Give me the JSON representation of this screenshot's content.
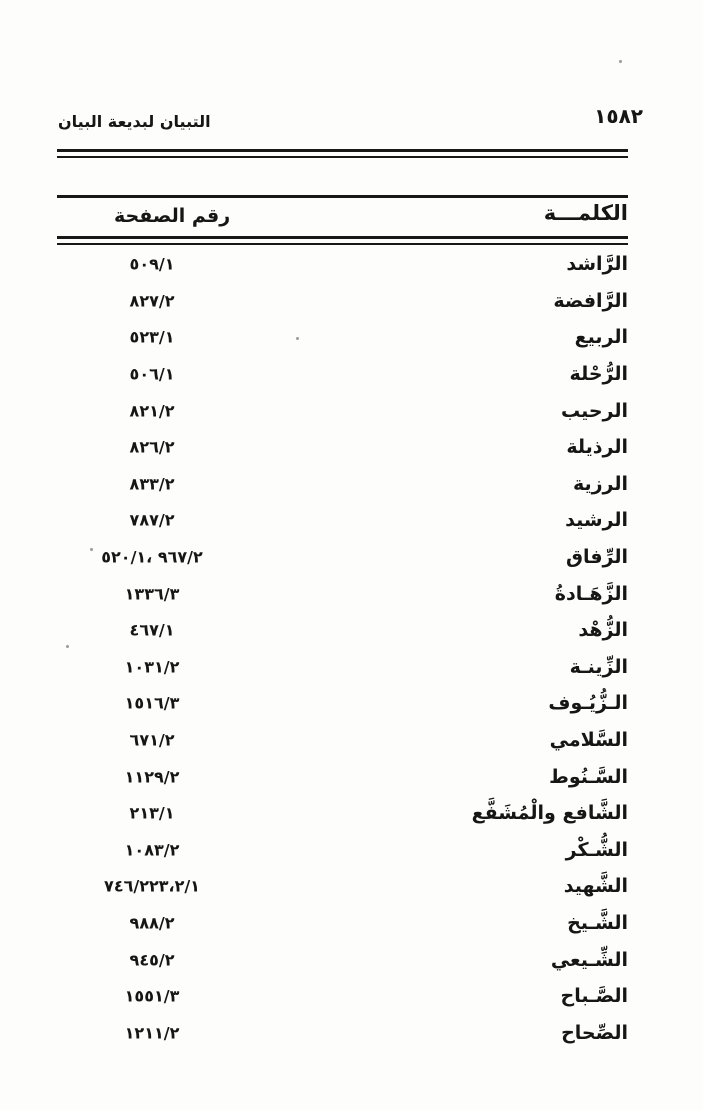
{
  "page": {
    "running_head": {
      "page_number": "١٥٨٢",
      "book_title": "التبيان لبديعة البيان"
    },
    "index_table": {
      "word_header": "الكلمـــة",
      "page_header": "رقم الصفحة",
      "rows": [
        {
          "word": "الرَّاشد",
          "pages": "٥٠٩/١"
        },
        {
          "word": "الرَّافضة",
          "pages": "٨٢٧/٢"
        },
        {
          "word": "الربيع",
          "pages": "٥٢٣/١"
        },
        {
          "word": "الرُّحْلة",
          "pages": "٥٠٦/١"
        },
        {
          "word": "الرحيب",
          "pages": "٨٢١/٢"
        },
        {
          "word": "الرذيلة",
          "pages": "٨٢٦/٢"
        },
        {
          "word": "الرزية",
          "pages": "٨٣٣/٢"
        },
        {
          "word": "الرشيد",
          "pages": "٧٨٧/٢"
        },
        {
          "word": "الرِّفاق",
          "pages": "٩٦٧/٢ ،٥٢٠/١"
        },
        {
          "word": "الزَّهَـادةُ",
          "pages": "١٣٣٦/٣"
        },
        {
          "word": "الزُّهْد",
          "pages": "٤٦٧/١"
        },
        {
          "word": "الزِّينـة",
          "pages": "١٠٣١/٢"
        },
        {
          "word": "الـزُّيُـوف",
          "pages": "١٥١٦/٣"
        },
        {
          "word": "السَّلامي",
          "pages": "٦٧١/٢"
        },
        {
          "word": "السَّـنُوط",
          "pages": "١١٢٩/٢"
        },
        {
          "word": "الشَّافع والْمُشَفَّع",
          "pages": "٢١٣/١"
        },
        {
          "word": "الشُّـكْر",
          "pages": "١٠٨٣/٢"
        },
        {
          "word": "الشَّهيد",
          "pages": "٧٤٦/٢٢٣،٢/١"
        },
        {
          "word": "الشَّـيخ",
          "pages": "٩٨٨/٢"
        },
        {
          "word": "الشِّـيعي",
          "pages": "٩٤٥/٢"
        },
        {
          "word": "الصَّـباح",
          "pages": "١٥٥١/٣"
        },
        {
          "word": "الصِّحاح",
          "pages": "١٢١١/٢"
        }
      ]
    }
  }
}
